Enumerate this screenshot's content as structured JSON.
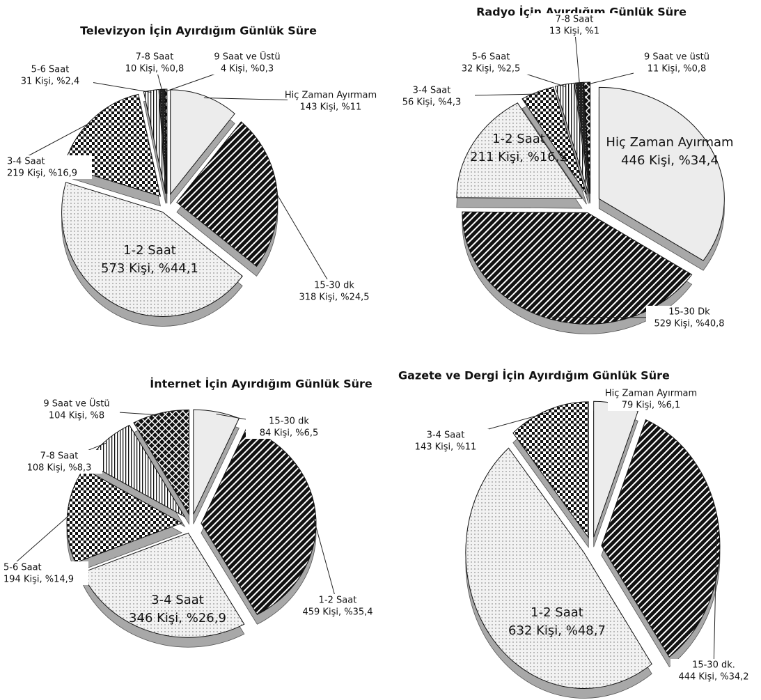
{
  "chart_data": [
    {
      "type": "pie",
      "title": "Televizyon İçin Ayırdığım Günlük Süre",
      "categories": [
        "Hiç Zaman Ayırmam",
        "15-30 dk",
        "1-2 Saat",
        "3-4 Saat",
        "5-6 Saat",
        "7-8 Saat",
        "9 Saat ve Üstü"
      ],
      "values": [
        11,
        24.5,
        44.1,
        16.9,
        2.4,
        0.8,
        0.3
      ],
      "value_labels": [
        "143 Kişi, %11",
        "318 Kişi, %24,5",
        "573 Kişi, %44,1",
        "219 Kişi, %16,9",
        "31 Kişi, %2,4",
        "10 Kişi, %0,8",
        "4 Kişi, %0,3"
      ],
      "patterns": [
        "light",
        "diag",
        "dots",
        "check",
        "vstripe",
        "dark",
        "xhatch"
      ]
    },
    {
      "type": "pie",
      "title": "Radyo İçin Ayırdığım Günlük Süre",
      "categories": [
        "Hiç Zaman Ayırmam",
        "15-30 Dk",
        "1-2 Saat",
        "3-4 Saat",
        "5-6 Saat",
        "7-8 Saat",
        "9 Saat ve üstü"
      ],
      "values": [
        34.4,
        40.8,
        16.3,
        4.3,
        2.5,
        1,
        0.8
      ],
      "value_labels": [
        "446 Kişi, %34,4",
        "529 Kişi, %40,8",
        "211 Kişi, %16,3",
        "56 Kişi, %4,3",
        "32 Kişi, %2,5",
        "13 Kişi, %1",
        "11 Kişi, %0,8"
      ],
      "patterns": [
        "light",
        "diag",
        "dots",
        "check",
        "vstripe",
        "dark",
        "xhatch"
      ]
    },
    {
      "type": "pie",
      "title": "İnternet İçin Ayırdığım Günlük Süre",
      "categories": [
        "15-30 dk",
        "1-2 Saat",
        "3-4 Saat",
        "5-6 Saat",
        "7-8 Saat",
        "9 Saat ve Üstü"
      ],
      "values": [
        6.5,
        35.4,
        26.9,
        14.9,
        8.3,
        8
      ],
      "value_labels": [
        "84 Kişi, %6,5",
        "459 Kişi, %35,4",
        "346 Kişi, %26,9",
        "194 Kişi, %14,9",
        "108 Kişi, %8,3",
        "104 Kişi, %8"
      ],
      "patterns": [
        "light",
        "diag",
        "dots",
        "check",
        "vstripe",
        "xhatch"
      ]
    },
    {
      "type": "pie",
      "title": "Gazete ve Dergi İçin Ayırdığım Günlük Süre",
      "categories": [
        "Hiç Zaman Ayırmam",
        "15-30 dk.",
        "1-2 Saat",
        "3-4 Saat"
      ],
      "values": [
        6.1,
        34.2,
        48.7,
        11
      ],
      "value_labels": [
        "79 Kişi, %6,1",
        "444 Kişi, %34,2",
        "632 Kişi, %48,7",
        "143 Kişi, %11"
      ],
      "patterns": [
        "light",
        "diag",
        "dots",
        "check"
      ]
    }
  ]
}
